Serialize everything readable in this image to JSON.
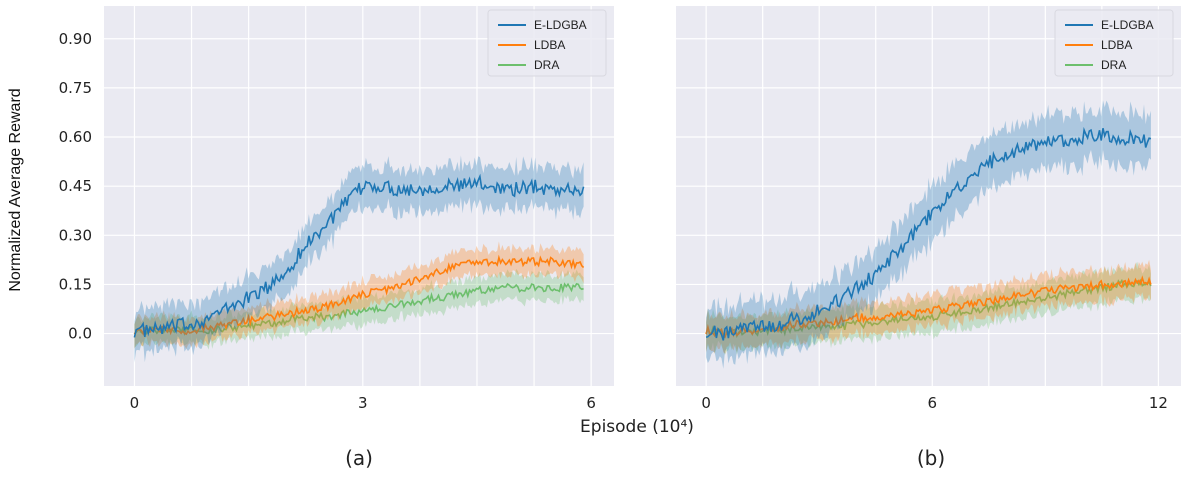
{
  "ylabel": "Normalized Average Reward",
  "xlabel": "Episode (10⁴)",
  "colors": {
    "E-LDGBA": "#1f77b4",
    "LDBA": "#ff7f0e",
    "DRA": "#6dbf6d",
    "background": "#eaeaf2",
    "grid": "#ffffff"
  },
  "chart_data": [
    {
      "type": "line",
      "panel_label": "(a)",
      "legend_position": "top-right",
      "grid": true,
      "xlim": [
        -0.4,
        6.3
      ],
      "ylim": [
        -0.16,
        1.0
      ],
      "xticks": [
        0,
        3,
        6
      ],
      "xtick_labels": [
        "0",
        "3",
        "6"
      ],
      "yticks": [
        0.0,
        0.15,
        0.3,
        0.45,
        0.6,
        0.75,
        0.9
      ],
      "ytick_labels": [
        "0.0",
        "0.15",
        "0.30",
        "0.45",
        "0.60",
        "0.75",
        "0.90"
      ],
      "x": [
        0,
        0.25,
        0.5,
        0.75,
        1,
        1.25,
        1.5,
        1.75,
        2,
        2.25,
        2.5,
        2.75,
        3,
        3.25,
        3.5,
        3.75,
        4,
        4.25,
        4.5,
        4.75,
        5,
        5.25,
        5.5,
        5.75,
        5.9
      ],
      "series": [
        {
          "name": "E-LDGBA",
          "values": [
            0.01,
            0.01,
            0.02,
            0.03,
            0.05,
            0.08,
            0.11,
            0.14,
            0.19,
            0.27,
            0.33,
            0.39,
            0.45,
            0.45,
            0.44,
            0.44,
            0.45,
            0.45,
            0.46,
            0.45,
            0.44,
            0.45,
            0.44,
            0.44,
            0.43
          ],
          "band": 0.08
        },
        {
          "name": "LDBA",
          "values": [
            0.01,
            0.01,
            0.01,
            0.01,
            0.02,
            0.03,
            0.04,
            0.05,
            0.06,
            0.07,
            0.08,
            0.1,
            0.12,
            0.13,
            0.15,
            0.17,
            0.19,
            0.21,
            0.22,
            0.22,
            0.22,
            0.22,
            0.22,
            0.21,
            0.21
          ],
          "band": 0.05
        },
        {
          "name": "DRA",
          "values": [
            0.01,
            0.01,
            0.01,
            0.01,
            0.01,
            0.02,
            0.02,
            0.03,
            0.04,
            0.05,
            0.05,
            0.06,
            0.07,
            0.08,
            0.09,
            0.1,
            0.11,
            0.12,
            0.13,
            0.14,
            0.14,
            0.14,
            0.14,
            0.14,
            0.14
          ],
          "band": 0.05
        }
      ]
    },
    {
      "type": "line",
      "panel_label": "(b)",
      "legend_position": "top-right",
      "grid": true,
      "xlim": [
        -0.8,
        12.6
      ],
      "ylim": [
        -0.16,
        1.0
      ],
      "xticks": [
        0,
        6,
        12
      ],
      "xtick_labels": [
        "0",
        "6",
        "12"
      ],
      "yticks": [
        0.0,
        0.15,
        0.3,
        0.45,
        0.6,
        0.75,
        0.9
      ],
      "ytick_labels": [],
      "x": [
        0,
        0.5,
        1,
        1.5,
        2,
        2.5,
        3,
        3.5,
        4,
        4.5,
        5,
        5.5,
        6,
        6.5,
        7,
        7.5,
        8,
        8.5,
        9,
        9.5,
        10,
        10.5,
        11,
        11.5,
        11.8
      ],
      "series": [
        {
          "name": "E-LDGBA",
          "values": [
            0.01,
            0.0,
            0.01,
            0.02,
            0.03,
            0.05,
            0.07,
            0.1,
            0.14,
            0.18,
            0.24,
            0.3,
            0.37,
            0.43,
            0.48,
            0.52,
            0.55,
            0.57,
            0.58,
            0.59,
            0.6,
            0.61,
            0.6,
            0.59,
            0.58
          ],
          "band": 0.1
        },
        {
          "name": "LDBA",
          "values": [
            0.01,
            0.0,
            0.01,
            0.01,
            0.02,
            0.03,
            0.03,
            0.04,
            0.05,
            0.05,
            0.06,
            0.06,
            0.07,
            0.08,
            0.09,
            0.1,
            0.11,
            0.12,
            0.13,
            0.14,
            0.14,
            0.15,
            0.15,
            0.16,
            0.16
          ],
          "band": 0.06
        },
        {
          "name": "DRA",
          "values": [
            0.01,
            0.0,
            0.0,
            0.01,
            0.01,
            0.02,
            0.02,
            0.02,
            0.03,
            0.03,
            0.04,
            0.05,
            0.05,
            0.06,
            0.07,
            0.08,
            0.09,
            0.1,
            0.11,
            0.12,
            0.13,
            0.14,
            0.15,
            0.15,
            0.15
          ],
          "band": 0.06
        }
      ]
    }
  ]
}
